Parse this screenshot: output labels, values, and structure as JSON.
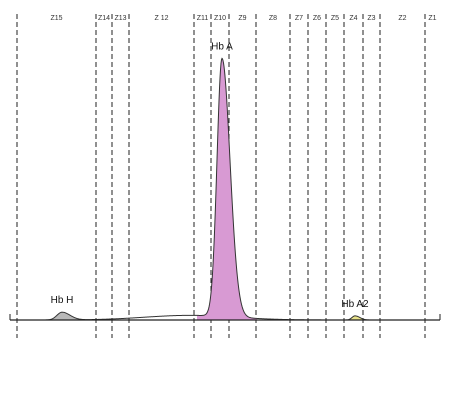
{
  "chart_data": {
    "type": "area",
    "title": "",
    "xlabel": "",
    "ylabel": "",
    "grid": false,
    "zones": [
      "Z15",
      "Z14",
      "Z13",
      "Z 12",
      "Z11",
      "Z10",
      "Z9",
      "Z8",
      "Z7",
      "Z6",
      "Z5",
      "Z4",
      "Z3",
      "Z2",
      "Z1"
    ],
    "zone_boundaries": [
      17,
      96,
      112,
      129,
      194,
      211,
      229,
      256,
      290,
      308,
      326,
      344,
      363,
      380,
      425
    ],
    "x_range": [
      10,
      440
    ],
    "y_range": [
      0,
      100
    ],
    "peaks": [
      {
        "label": "Hb H",
        "center": 62,
        "height": 3.0,
        "width": 5,
        "color": "#b8b8b8"
      },
      {
        "label": "Hb A",
        "center": 222,
        "height": 100,
        "width": 5,
        "color": "#d89ad3"
      },
      {
        "label": "Hb A2",
        "center": 355,
        "height": 1.6,
        "width": 3,
        "color": "#e8e28a"
      }
    ],
    "baseline_hump": {
      "center": 190,
      "height": 1.8,
      "width": 45
    }
  }
}
